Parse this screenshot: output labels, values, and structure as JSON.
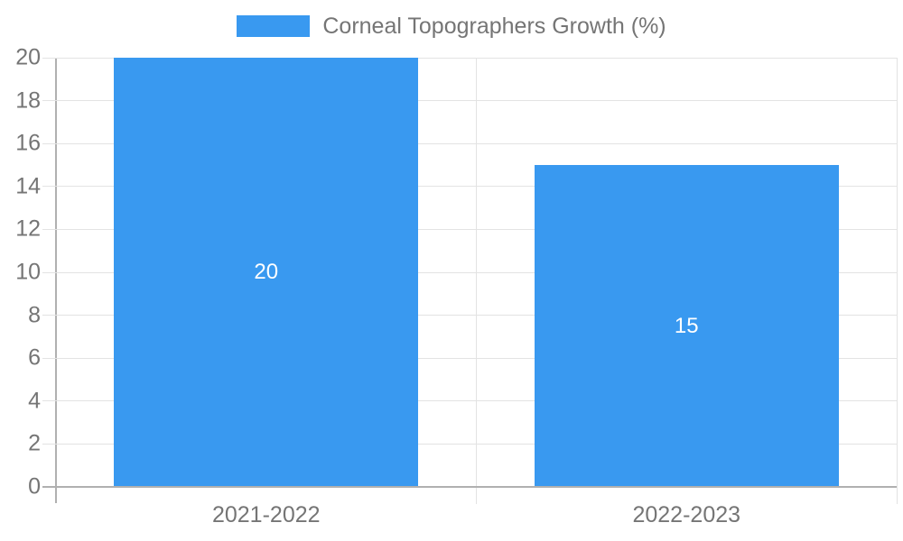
{
  "chart_data": {
    "type": "bar",
    "categories": [
      "2021-2022",
      "2022-2023"
    ],
    "series": [
      {
        "name": "Corneal Topographers Growth (%)",
        "values": [
          20,
          15
        ]
      }
    ],
    "value_labels": [
      "20",
      "15"
    ],
    "title": "",
    "xlabel": "",
    "ylabel": "",
    "ylim": [
      0,
      20
    ],
    "yticks": [
      0,
      2,
      4,
      6,
      8,
      10,
      12,
      14,
      16,
      18,
      20
    ],
    "grid": true,
    "legend_position": "top-center",
    "colors": {
      "bar": "#3999F0",
      "grid": "#E3E3E3",
      "axis": "#B0B0B0",
      "text": "#757575",
      "value_label": "#FFFFFF",
      "background": "#FFFFFF"
    }
  }
}
